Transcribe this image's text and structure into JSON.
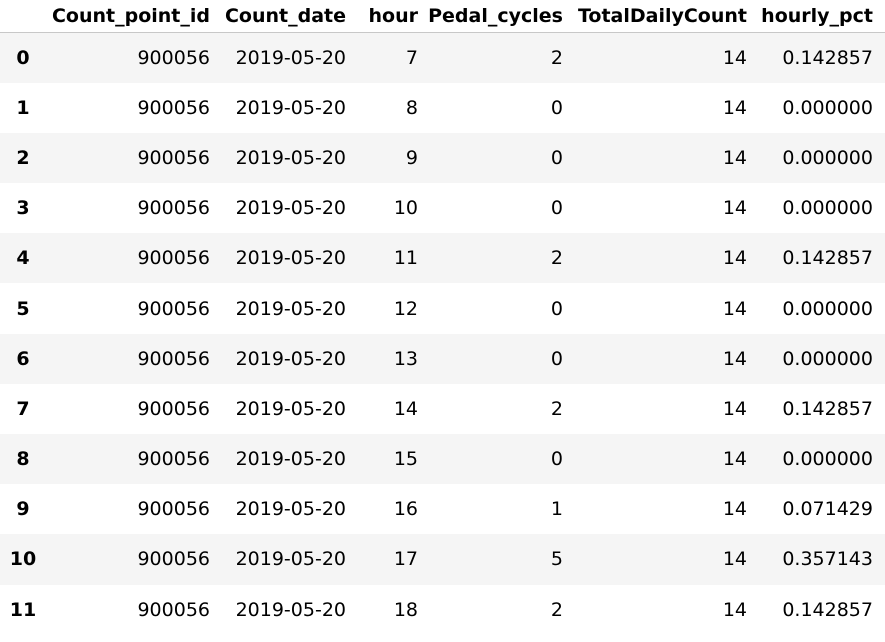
{
  "table": {
    "index_header": "",
    "columns": [
      "Count_point_id",
      "Count_date",
      "hour",
      "Pedal_cycles",
      "TotalDailyCount",
      "hourly_pct"
    ],
    "rows": [
      {
        "index": "0",
        "cells": [
          "900056",
          "2019-05-20",
          "7",
          "2",
          "14",
          "0.142857"
        ]
      },
      {
        "index": "1",
        "cells": [
          "900056",
          "2019-05-20",
          "8",
          "0",
          "14",
          "0.000000"
        ]
      },
      {
        "index": "2",
        "cells": [
          "900056",
          "2019-05-20",
          "9",
          "0",
          "14",
          "0.000000"
        ]
      },
      {
        "index": "3",
        "cells": [
          "900056",
          "2019-05-20",
          "10",
          "0",
          "14",
          "0.000000"
        ]
      },
      {
        "index": "4",
        "cells": [
          "900056",
          "2019-05-20",
          "11",
          "2",
          "14",
          "0.142857"
        ]
      },
      {
        "index": "5",
        "cells": [
          "900056",
          "2019-05-20",
          "12",
          "0",
          "14",
          "0.000000"
        ]
      },
      {
        "index": "6",
        "cells": [
          "900056",
          "2019-05-20",
          "13",
          "0",
          "14",
          "0.000000"
        ]
      },
      {
        "index": "7",
        "cells": [
          "900056",
          "2019-05-20",
          "14",
          "2",
          "14",
          "0.142857"
        ]
      },
      {
        "index": "8",
        "cells": [
          "900056",
          "2019-05-20",
          "15",
          "0",
          "14",
          "0.000000"
        ]
      },
      {
        "index": "9",
        "cells": [
          "900056",
          "2019-05-20",
          "16",
          "1",
          "14",
          "0.071429"
        ]
      },
      {
        "index": "10",
        "cells": [
          "900056",
          "2019-05-20",
          "17",
          "5",
          "14",
          "0.357143"
        ]
      },
      {
        "index": "11",
        "cells": [
          "900056",
          "2019-05-20",
          "18",
          "2",
          "14",
          "0.142857"
        ]
      }
    ]
  },
  "colors": {
    "stripe": "#f5f5f5",
    "background": "#ffffff",
    "text": "#000000"
  }
}
